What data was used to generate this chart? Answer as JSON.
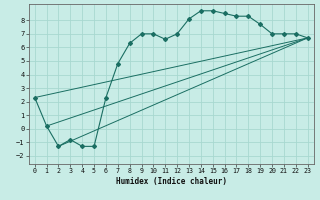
{
  "xlabel": "Humidex (Indice chaleur)",
  "ylabel": "",
  "background_color": "#c8ece6",
  "grid_color": "#a8d8d0",
  "line_color": "#1a6e62",
  "xlim": [
    -0.5,
    23.5
  ],
  "ylim": [
    -2.6,
    9.2
  ],
  "xticks": [
    0,
    1,
    2,
    3,
    4,
    5,
    6,
    7,
    8,
    9,
    10,
    11,
    12,
    13,
    14,
    15,
    16,
    17,
    18,
    19,
    20,
    21,
    22,
    23
  ],
  "yticks": [
    -2,
    -1,
    0,
    1,
    2,
    3,
    4,
    5,
    6,
    7,
    8
  ],
  "series": [
    {
      "x": [
        0,
        1,
        2,
        3,
        4,
        5,
        6,
        7,
        8,
        9,
        10,
        11,
        12,
        13,
        14,
        15,
        16,
        17,
        18,
        19,
        20,
        21,
        22,
        23
      ],
      "y": [
        2.3,
        0.2,
        -1.3,
        -0.8,
        -1.3,
        -1.3,
        2.3,
        4.8,
        6.3,
        7.0,
        7.0,
        6.6,
        7.0,
        8.1,
        8.7,
        8.7,
        8.5,
        8.3,
        8.3,
        7.7,
        7.0,
        7.0,
        7.0,
        6.7
      ]
    },
    {
      "x": [
        0,
        23
      ],
      "y": [
        2.3,
        6.7
      ]
    },
    {
      "x": [
        1,
        23
      ],
      "y": [
        0.2,
        6.7
      ]
    },
    {
      "x": [
        2,
        23
      ],
      "y": [
        -1.3,
        6.7
      ]
    }
  ]
}
